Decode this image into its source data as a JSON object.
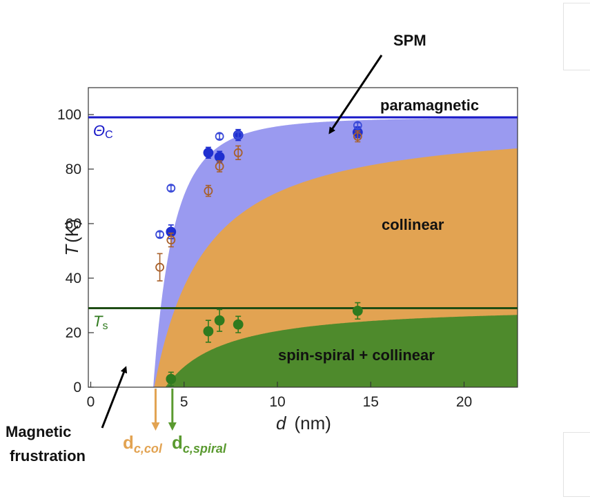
{
  "chart_data": {
    "type": "scatter",
    "xlabel": "d",
    "xunit": "(nm)",
    "ylabel": "T",
    "yunit": "(K)",
    "xlim": [
      0,
      23
    ],
    "ylim": [
      0,
      110
    ],
    "xticks": [
      0,
      5,
      10,
      15,
      20
    ],
    "yticks": [
      0,
      20,
      40,
      60,
      80,
      100
    ],
    "grid": false,
    "regions": [
      {
        "key": "paramagnetic",
        "label": "paramagnetic",
        "color": "#ffffff"
      },
      {
        "key": "spm",
        "label": "SPM",
        "color": "#9a9af0"
      },
      {
        "key": "collinear",
        "label": "collinear",
        "color": "#e2a352"
      },
      {
        "key": "spiral",
        "label": "spin-spiral + collinear",
        "color": "#4e8a2c"
      }
    ],
    "reference_lines": [
      {
        "key": "theta_c",
        "symbol": "Θ",
        "subscript": "C",
        "y": 99,
        "color": "#1818c8"
      },
      {
        "key": "t_s",
        "symbol": "T",
        "subscript": "s",
        "y": 29,
        "color": "#1e4d14"
      }
    ],
    "critical_thicknesses": [
      {
        "key": "dc_col",
        "symbol": "d",
        "subscript": "c,col",
        "x": 3.4,
        "color": "#e2a352"
      },
      {
        "key": "dc_spiral",
        "symbol": "d",
        "subscript": "c,spiral",
        "x": 4.3,
        "color": "#5a9a30"
      }
    ],
    "series": [
      {
        "key": "blue_filled",
        "color": "#1f2fd0",
        "marker": "filled",
        "points": [
          {
            "x": 4.3,
            "y": 57,
            "err": 2.5
          },
          {
            "x": 6.3,
            "y": 86,
            "err": 2
          },
          {
            "x": 6.9,
            "y": 84.5,
            "err": 2
          },
          {
            "x": 7.9,
            "y": 92.5,
            "err": 2
          },
          {
            "x": 14.3,
            "y": 93.5,
            "err": 2
          }
        ]
      },
      {
        "key": "blue_open",
        "color": "#3a4ad8",
        "marker": "open",
        "points": [
          {
            "x": 3.7,
            "y": 56,
            "err": 1
          },
          {
            "x": 4.3,
            "y": 73,
            "err": 1
          },
          {
            "x": 6.9,
            "y": 92,
            "err": 1
          },
          {
            "x": 7.9,
            "y": 92.5,
            "err": 1
          },
          {
            "x": 14.3,
            "y": 96,
            "err": 1
          }
        ]
      },
      {
        "key": "orange_open",
        "color": "#a8602a",
        "marker": "open",
        "points": [
          {
            "x": 3.7,
            "y": 44,
            "err": 5
          },
          {
            "x": 4.3,
            "y": 54,
            "err": 2.5
          },
          {
            "x": 6.3,
            "y": 72,
            "err": 2
          },
          {
            "x": 6.9,
            "y": 81,
            "err": 2
          },
          {
            "x": 7.9,
            "y": 86,
            "err": 2.5
          },
          {
            "x": 14.3,
            "y": 92,
            "err": 2
          }
        ]
      },
      {
        "key": "green_filled",
        "color": "#2f7a1e",
        "marker": "filled",
        "points": [
          {
            "x": 4.3,
            "y": 3,
            "err": 2.5
          },
          {
            "x": 6.3,
            "y": 20.5,
            "err": 4
          },
          {
            "x": 6.9,
            "y": 24.5,
            "err": 4
          },
          {
            "x": 7.9,
            "y": 23,
            "err": 3
          },
          {
            "x": 14.3,
            "y": 28,
            "err": 3
          }
        ]
      }
    ],
    "annotations": [
      {
        "key": "spm",
        "text": "SPM"
      },
      {
        "key": "magnetic_frustration",
        "lines": [
          "Magnetic",
          "frustration"
        ]
      }
    ]
  }
}
